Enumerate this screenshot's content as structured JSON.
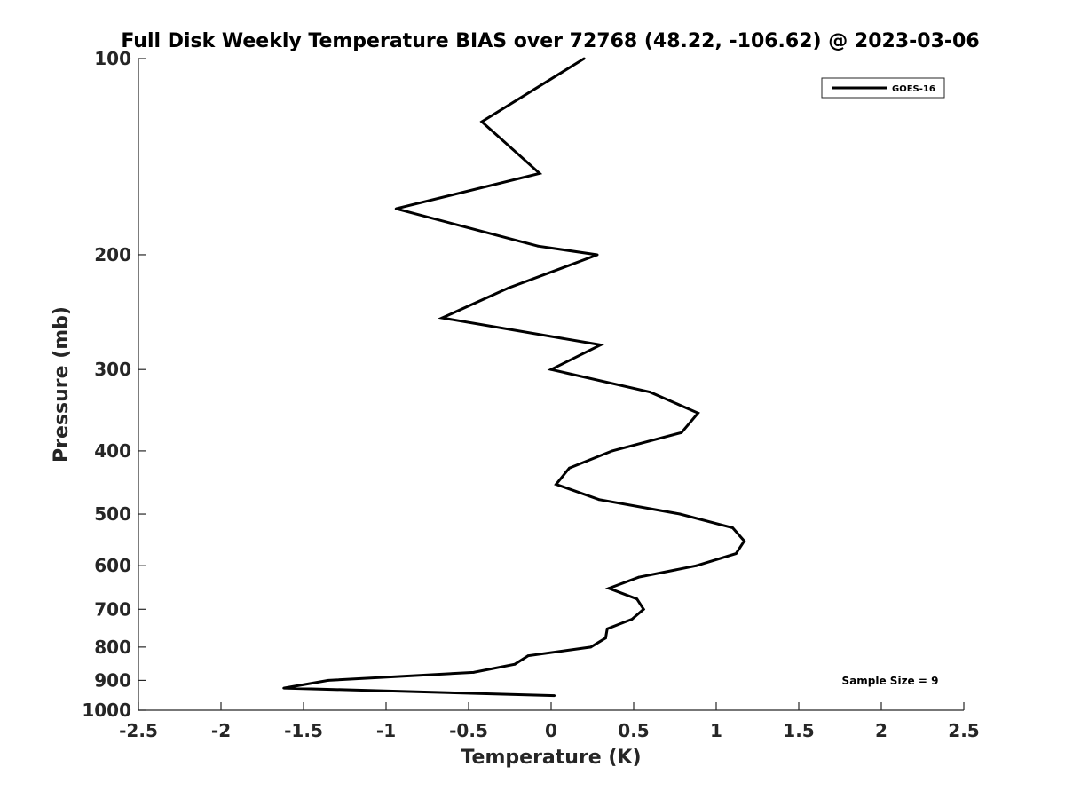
{
  "chart_data": {
    "type": "line",
    "title": "Full Disk Weekly Temperature BIAS over 72768 (48.22, -106.62) @ 2023-03-06",
    "xlabel": "Temperature (K)",
    "ylabel": "Pressure (mb)",
    "xlim": [
      -2.5,
      2.5
    ],
    "ylim": [
      100,
      1000
    ],
    "yscale": "log",
    "yreversed": true,
    "grid": false,
    "x_ticks": [
      -2.5,
      -2,
      -1.5,
      -1,
      -0.5,
      0,
      0.5,
      1,
      1.5,
      2,
      2.5
    ],
    "x_tick_labels": [
      "-2.5",
      "-2",
      "-1.5",
      "-1",
      "-0.5",
      "0",
      "0.5",
      "1",
      "1.5",
      "2",
      "2.5"
    ],
    "y_ticks": [
      100,
      200,
      300,
      400,
      500,
      600,
      700,
      800,
      900,
      1000
    ],
    "y_tick_labels": [
      "100",
      "200",
      "300",
      "400",
      "500",
      "600",
      "700",
      "800",
      "900",
      "1000"
    ],
    "legend_position": "top-right",
    "series": [
      {
        "name": "GOES-16",
        "color": "#000000",
        "points": [
          {
            "x": 0.2,
            "p": 100
          },
          {
            "x": -0.42,
            "p": 125
          },
          {
            "x": -0.07,
            "p": 150
          },
          {
            "x": -0.94,
            "p": 170
          },
          {
            "x": -0.08,
            "p": 194
          },
          {
            "x": 0.28,
            "p": 200
          },
          {
            "x": -0.26,
            "p": 225
          },
          {
            "x": -0.66,
            "p": 250
          },
          {
            "x": 0.3,
            "p": 275
          },
          {
            "x": 0.0,
            "p": 300
          },
          {
            "x": 0.6,
            "p": 325
          },
          {
            "x": 0.89,
            "p": 350
          },
          {
            "x": 0.79,
            "p": 375
          },
          {
            "x": 0.37,
            "p": 400
          },
          {
            "x": 0.11,
            "p": 425
          },
          {
            "x": 0.03,
            "p": 450
          },
          {
            "x": 0.29,
            "p": 475
          },
          {
            "x": 0.78,
            "p": 500
          },
          {
            "x": 1.1,
            "p": 525
          },
          {
            "x": 1.17,
            "p": 550
          },
          {
            "x": 1.12,
            "p": 575
          },
          {
            "x": 0.88,
            "p": 600
          },
          {
            "x": 0.53,
            "p": 625
          },
          {
            "x": 0.35,
            "p": 650
          },
          {
            "x": 0.52,
            "p": 675
          },
          {
            "x": 0.56,
            "p": 700
          },
          {
            "x": 0.49,
            "p": 725
          },
          {
            "x": 0.34,
            "p": 750
          },
          {
            "x": 0.33,
            "p": 775
          },
          {
            "x": 0.24,
            "p": 800
          },
          {
            "x": -0.14,
            "p": 825
          },
          {
            "x": -0.22,
            "p": 850
          },
          {
            "x": -0.47,
            "p": 875
          },
          {
            "x": -1.35,
            "p": 900
          },
          {
            "x": -1.62,
            "p": 925
          },
          {
            "x": 0.02,
            "p": 950
          }
        ]
      }
    ],
    "annotation": "Sample Size = 9"
  }
}
